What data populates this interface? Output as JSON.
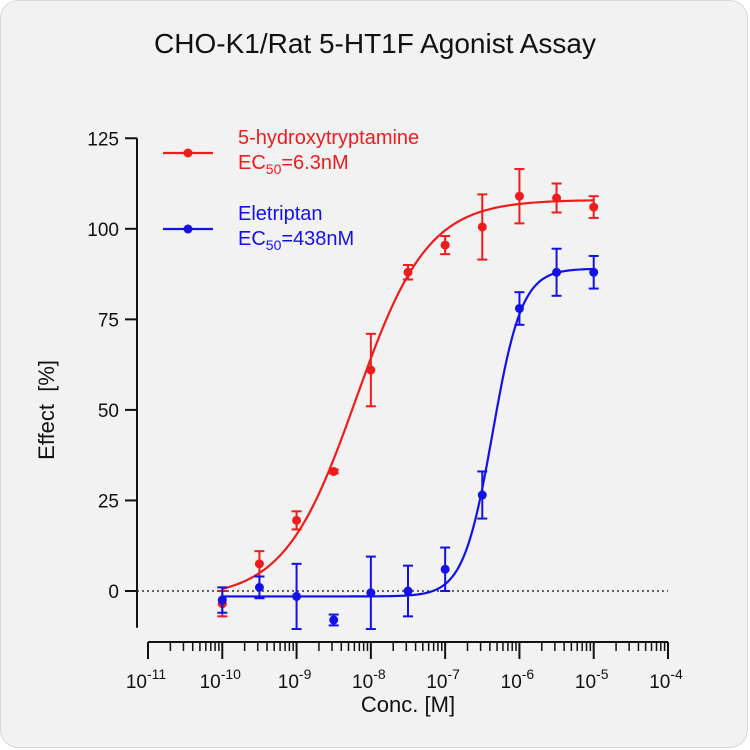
{
  "chart_data": {
    "type": "scatter",
    "title": "CHO-K1/Rat 5-HT1F Agonist Assay",
    "xlabel": "Conc. [M]",
    "ylabel": "Effect  [%]",
    "xscale": "log",
    "xlim_exp": [
      -11,
      -4
    ],
    "ylim": [
      -10,
      125
    ],
    "yticks": [
      0,
      25,
      50,
      75,
      100,
      125
    ],
    "xtick_exponents": [
      "-11",
      "-10",
      "-9",
      "-8",
      "-7",
      "-6",
      "-5",
      "-4"
    ],
    "xtick_base": "10",
    "zero_line": "dotted",
    "grid": false,
    "legend_position": "top-left",
    "series": [
      {
        "name": "5-hydroxytryptamine",
        "ec50_label": "6.3nM",
        "color": "#ee1c1c",
        "fit": {
          "bottom": -2,
          "top": 108,
          "ec50_log": -8.2,
          "hill": 0.9
        },
        "points": [
          {
            "log_conc": -10.0,
            "y": -3.5,
            "err": 3.5
          },
          {
            "log_conc": -9.5,
            "y": 7.5,
            "err": 3.5
          },
          {
            "log_conc": -9.0,
            "y": 19.5,
            "err": 2.5
          },
          {
            "log_conc": -8.5,
            "y": 33,
            "err": 0.5
          },
          {
            "log_conc": -8.0,
            "y": 61,
            "err": 10
          },
          {
            "log_conc": -7.5,
            "y": 88,
            "err": 2
          },
          {
            "log_conc": -7.0,
            "y": 95.5,
            "err": 2.5
          },
          {
            "log_conc": -6.5,
            "y": 100.5,
            "err": 9
          },
          {
            "log_conc": -6.0,
            "y": 109,
            "err": 7.5
          },
          {
            "log_conc": -5.5,
            "y": 108.5,
            "err": 4
          },
          {
            "log_conc": -5.0,
            "y": 106,
            "err": 3
          }
        ]
      },
      {
        "name": "Eletriptan",
        "ec50_label": "438nM",
        "color": "#1212e8",
        "fit": {
          "bottom": -1.5,
          "top": 89,
          "ec50_log": -6.36,
          "hill": 2.2
        },
        "points": [
          {
            "log_conc": -10.0,
            "y": -2.5,
            "err": 3.5
          },
          {
            "log_conc": -9.5,
            "y": 1,
            "err": 3
          },
          {
            "log_conc": -9.0,
            "y": -1.5,
            "err": 9
          },
          {
            "log_conc": -8.5,
            "y": -8,
            "err": 1.5
          },
          {
            "log_conc": -8.0,
            "y": -0.5,
            "err": 10
          },
          {
            "log_conc": -7.5,
            "y": 0,
            "err": 7
          },
          {
            "log_conc": -7.0,
            "y": 6,
            "err": 6
          },
          {
            "log_conc": -6.5,
            "y": 26.5,
            "err": 6.5
          },
          {
            "log_conc": -6.0,
            "y": 78,
            "err": 4.5
          },
          {
            "log_conc": -5.5,
            "y": 88,
            "err": 6.5
          },
          {
            "log_conc": -5.0,
            "y": 88,
            "err": 4.5
          }
        ]
      }
    ],
    "legend": {
      "ec_prefix": "EC",
      "ec_subscript": "50",
      "ec_equals": "="
    }
  }
}
